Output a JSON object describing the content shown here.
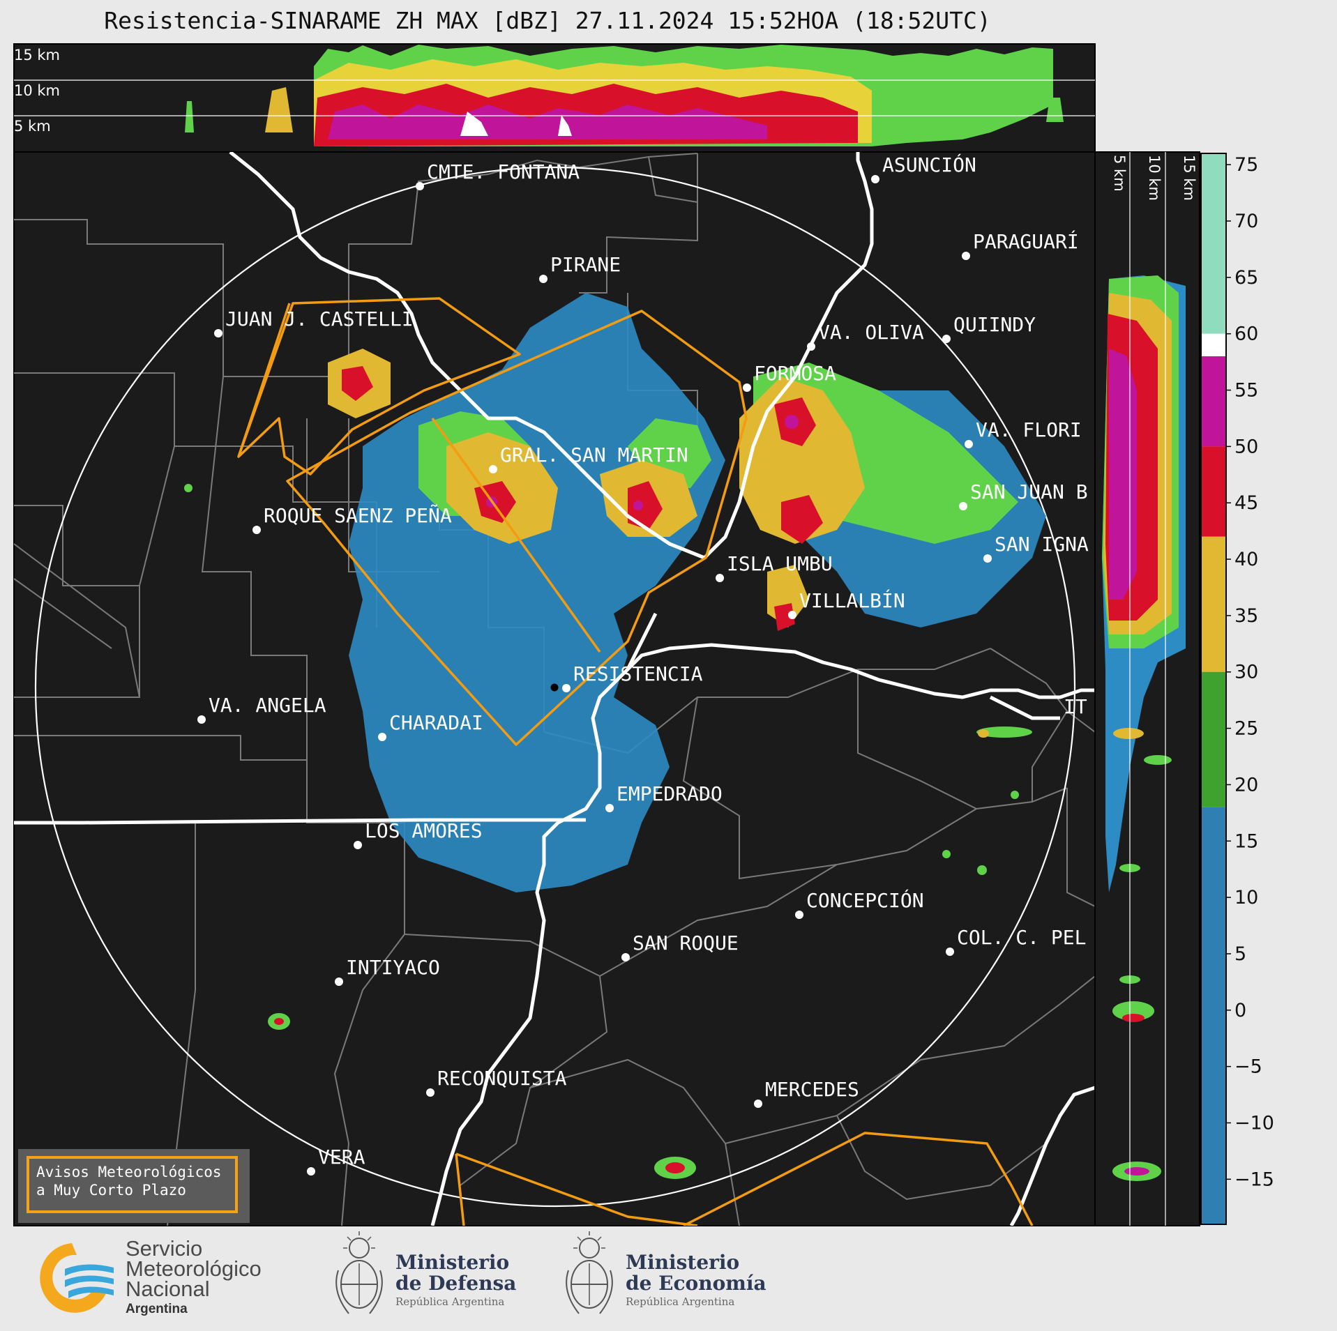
{
  "title": "Resistencia-SINARAME ZH MAX [dBZ] 27.11.2024 15:52HOA (18:52UTC)",
  "top_panel": {
    "labels": [
      "15 km",
      "10 km",
      "5 km"
    ]
  },
  "side_panel": {
    "labels": [
      "5 km",
      "10 km",
      "15 km"
    ]
  },
  "colorbar": {
    "unit": "dBZ",
    "ticks": [
      "75",
      "70",
      "65",
      "60",
      "55",
      "50",
      "45",
      "40",
      "35",
      "30",
      "25",
      "20",
      "15",
      "10",
      "5",
      "0",
      "−5",
      "−10",
      "−15"
    ],
    "bands": [
      {
        "from": 60,
        "to": 76,
        "color": "#8fdcbf"
      },
      {
        "from": 58,
        "to": 60,
        "color": "#ffffff"
      },
      {
        "from": 50,
        "to": 58,
        "color": "#c0149b"
      },
      {
        "from": 42,
        "to": 50,
        "color": "#d9102a"
      },
      {
        "from": 30,
        "to": 42,
        "color": "#e0b832"
      },
      {
        "from": 18,
        "to": 30,
        "color": "#3fa22e"
      },
      {
        "from": -19,
        "to": 18,
        "color": "#2f7fb2"
      }
    ]
  },
  "cities": [
    {
      "name": "CMTE. FONTANA"
    },
    {
      "name": "ASUNCIÓN"
    },
    {
      "name": "PIRANE"
    },
    {
      "name": "PARAGUARÍ"
    },
    {
      "name": "JUAN J. CASTELLI"
    },
    {
      "name": "VA. OLIVA"
    },
    {
      "name": "QUIINDY"
    },
    {
      "name": "FORMOSA"
    },
    {
      "name": "VA. FLORI"
    },
    {
      "name": "GRAL. SAN MARTIN"
    },
    {
      "name": "SAN JUAN B"
    },
    {
      "name": "ROQUE SAENZ PEÑA"
    },
    {
      "name": "SAN IGNA"
    },
    {
      "name": "ISLA UMBU"
    },
    {
      "name": "VILLALBÍN"
    },
    {
      "name": "RESISTENCIA"
    },
    {
      "name": "VA. ANGELA"
    },
    {
      "name": "CHARADAI"
    },
    {
      "name": "IT"
    },
    {
      "name": "EMPEDRADO"
    },
    {
      "name": "LOS AMORES"
    },
    {
      "name": "CONCEPCIÓN"
    },
    {
      "name": "SAN ROQUE"
    },
    {
      "name": "COL. C. PEL"
    },
    {
      "name": "INTIYACO"
    },
    {
      "name": "RECONQUISTA"
    },
    {
      "name": "MERCEDES"
    },
    {
      "name": "VERA"
    }
  ],
  "legend": {
    "line1": "Avisos Meteorológicos",
    "line2": "a Muy Corto Plazo"
  },
  "logos": {
    "smn": {
      "line1": "Servicio",
      "line2": "Meteorológico",
      "line3": "Nacional",
      "line4": "Argentina"
    },
    "defensa": {
      "line1": "Ministerio",
      "line2": "de Defensa",
      "line3": "República Argentina"
    },
    "economia": {
      "line1": "Ministerio",
      "line2": "de Economía",
      "line3": "República Argentina"
    }
  },
  "colors": {
    "map_bg": "#1b1b1b",
    "warning": "#f39c12",
    "border": "#ffffff",
    "grid": "#7a7a7a"
  }
}
